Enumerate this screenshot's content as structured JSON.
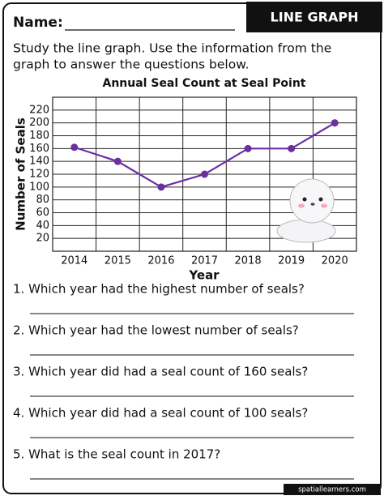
{
  "header": {
    "name_label": "Name:",
    "badge": "LINE GRAPH"
  },
  "instructions": [
    "Study the line graph. Use the information from the",
    "graph to answer the questions below."
  ],
  "chart_data": {
    "type": "line",
    "title": "Annual Seal Count at Seal Point",
    "x_label": "Year",
    "y_label": "Number of Seals",
    "categories": [
      "2014",
      "2015",
      "2016",
      "2017",
      "2018",
      "2019",
      "2020"
    ],
    "values": [
      162,
      140,
      100,
      120,
      160,
      160,
      200
    ],
    "color": "#6b2fa0",
    "ylim": [
      0,
      240
    ],
    "yticks": [
      20,
      40,
      60,
      80,
      100,
      120,
      140,
      160,
      180,
      200,
      220
    ],
    "grid": true
  },
  "questions": [
    "1. Which year had the highest number of seals?",
    "2. Which year had the lowest number of seals?",
    "3. Which year did had a seal count of 160 seals?",
    "4. Which year did had a seal count of 100 seals?",
    "5. What is the seal count in 2017?"
  ],
  "footer": "spatiallearners.com"
}
